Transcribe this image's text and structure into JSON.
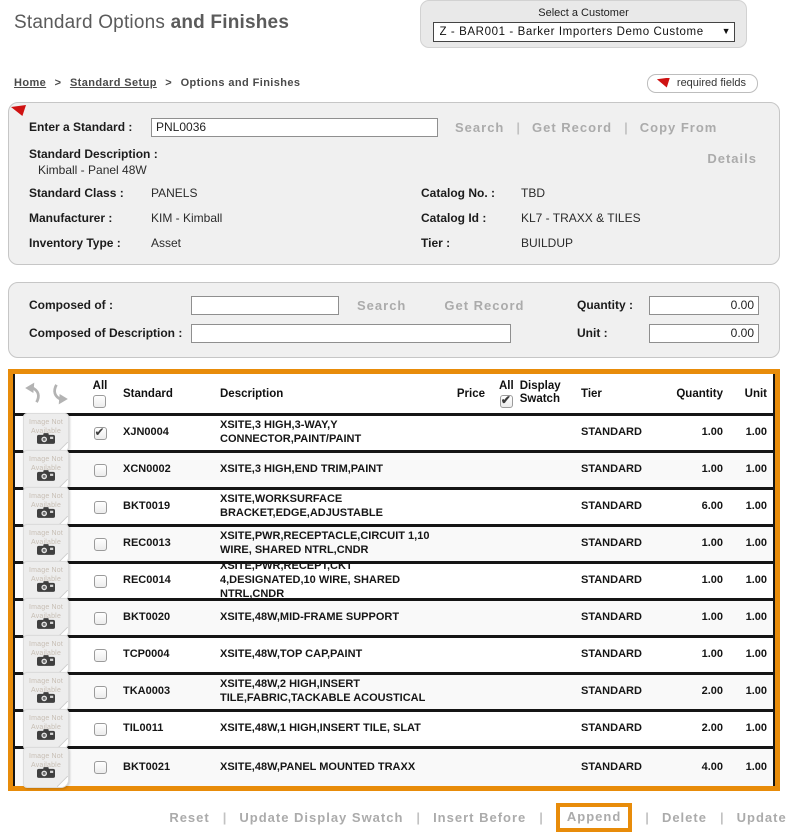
{
  "header": {
    "title_regular": "Standard Options ",
    "title_bold": "and Finishes",
    "customer_label": "Select a Customer",
    "customer_value": "Z - BAR001 - Barker Importers Demo Custome",
    "dropdown_arrow": "▼"
  },
  "breadcrumb": {
    "items": [
      {
        "label": "Home"
      },
      {
        "label": "Standard Setup"
      },
      {
        "label": "Options and Finishes"
      }
    ],
    "separator": ">",
    "required_badge": "required fields"
  },
  "standard_form": {
    "enter_label": "Enter a Standard :",
    "enter_value": "PNL0036",
    "actions": [
      "Search",
      "Get Record",
      "Copy From"
    ],
    "details_label": "Details",
    "description_label": "Standard Description :",
    "description_value": "Kimball - Panel 48W",
    "class_label": "Standard Class :",
    "class_value": "PANELS",
    "catalog_no_label": "Catalog No. :",
    "catalog_no_value": "TBD",
    "manufacturer_label": "Manufacturer :",
    "manufacturer_value": "KIM - Kimball",
    "catalog_id_label": "Catalog Id :",
    "catalog_id_value": "KL7 - TRAXX & TILES",
    "inventory_label": "Inventory Type :",
    "inventory_value": "Asset",
    "tier_label": "Tier :",
    "tier_value": "BUILDUP"
  },
  "composed_form": {
    "composed_label": "Composed of :",
    "composed_value": "",
    "actions": [
      "Search",
      "Get Record"
    ],
    "description_label": "Composed of Description :",
    "description_value": "",
    "quantity_label": "Quantity :",
    "quantity_value": "0.00",
    "unit_label": "Unit :",
    "unit_value": "0.00"
  },
  "table": {
    "headers": {
      "all": "All",
      "standard": "Standard",
      "description": "Description",
      "price": "Price",
      "swatch_all": "All",
      "display_swatch": "Display Swatch",
      "tier": "Tier",
      "quantity": "Quantity",
      "unit": "Unit"
    },
    "select_all_checked": false,
    "swatch_all_checked": true,
    "thumbnail_text": "Image Not Available",
    "rows": [
      {
        "standard": "XJN0004",
        "description": "XSITE,3 HIGH,3-WAY,Y CONNECTOR,PAINT/PAINT",
        "price": "",
        "tier": "STANDARD",
        "quantity": "1.00",
        "unit": "1.00",
        "checked": true
      },
      {
        "standard": "XCN0002",
        "description": "XSITE,3 HIGH,END TRIM,PAINT",
        "price": "",
        "tier": "STANDARD",
        "quantity": "1.00",
        "unit": "1.00",
        "checked": false
      },
      {
        "standard": "BKT0019",
        "description": "XSITE,WORKSURFACE BRACKET,EDGE,ADJUSTABLE",
        "price": "",
        "tier": "STANDARD",
        "quantity": "6.00",
        "unit": "1.00",
        "checked": false
      },
      {
        "standard": "REC0013",
        "description": "XSITE,PWR,RECEPTACLE,CIRCUIT 1,10 WIRE, SHARED NTRL,CNDR",
        "price": "",
        "tier": "STANDARD",
        "quantity": "1.00",
        "unit": "1.00",
        "checked": false
      },
      {
        "standard": "REC0014",
        "description": "XSITE,PWR,RECEPT,CKT 4,DESIGNATED,10 WIRE, SHARED NTRL,CNDR",
        "price": "",
        "tier": "STANDARD",
        "quantity": "1.00",
        "unit": "1.00",
        "checked": false
      },
      {
        "standard": "BKT0020",
        "description": "XSITE,48W,MID-FRAME SUPPORT",
        "price": "",
        "tier": "STANDARD",
        "quantity": "1.00",
        "unit": "1.00",
        "checked": false
      },
      {
        "standard": "TCP0004",
        "description": "XSITE,48W,TOP CAP,PAINT",
        "price": "",
        "tier": "STANDARD",
        "quantity": "1.00",
        "unit": "1.00",
        "checked": false
      },
      {
        "standard": "TKA0003",
        "description": "XSITE,48W,2 HIGH,INSERT TILE,FABRIC,TACKABLE ACOUSTICAL",
        "price": "",
        "tier": "STANDARD",
        "quantity": "2.00",
        "unit": "1.00",
        "checked": false
      },
      {
        "standard": "TIL0011",
        "description": "XSITE,48W,1 HIGH,INSERT TILE, SLAT",
        "price": "",
        "tier": "STANDARD",
        "quantity": "2.00",
        "unit": "1.00",
        "checked": false
      },
      {
        "standard": "BKT0021",
        "description": "XSITE,48W,PANEL MOUNTED TRAXX",
        "price": "",
        "tier": "STANDARD",
        "quantity": "4.00",
        "unit": "1.00",
        "checked": false
      }
    ]
  },
  "footer": {
    "actions": [
      "Reset",
      "Update Display Swatch",
      "Insert Before",
      "Append",
      "Delete",
      "Update"
    ],
    "highlighted": "Append"
  },
  "colors": {
    "accent_orange": "#e88c0a",
    "required_red": "#cf1212"
  }
}
